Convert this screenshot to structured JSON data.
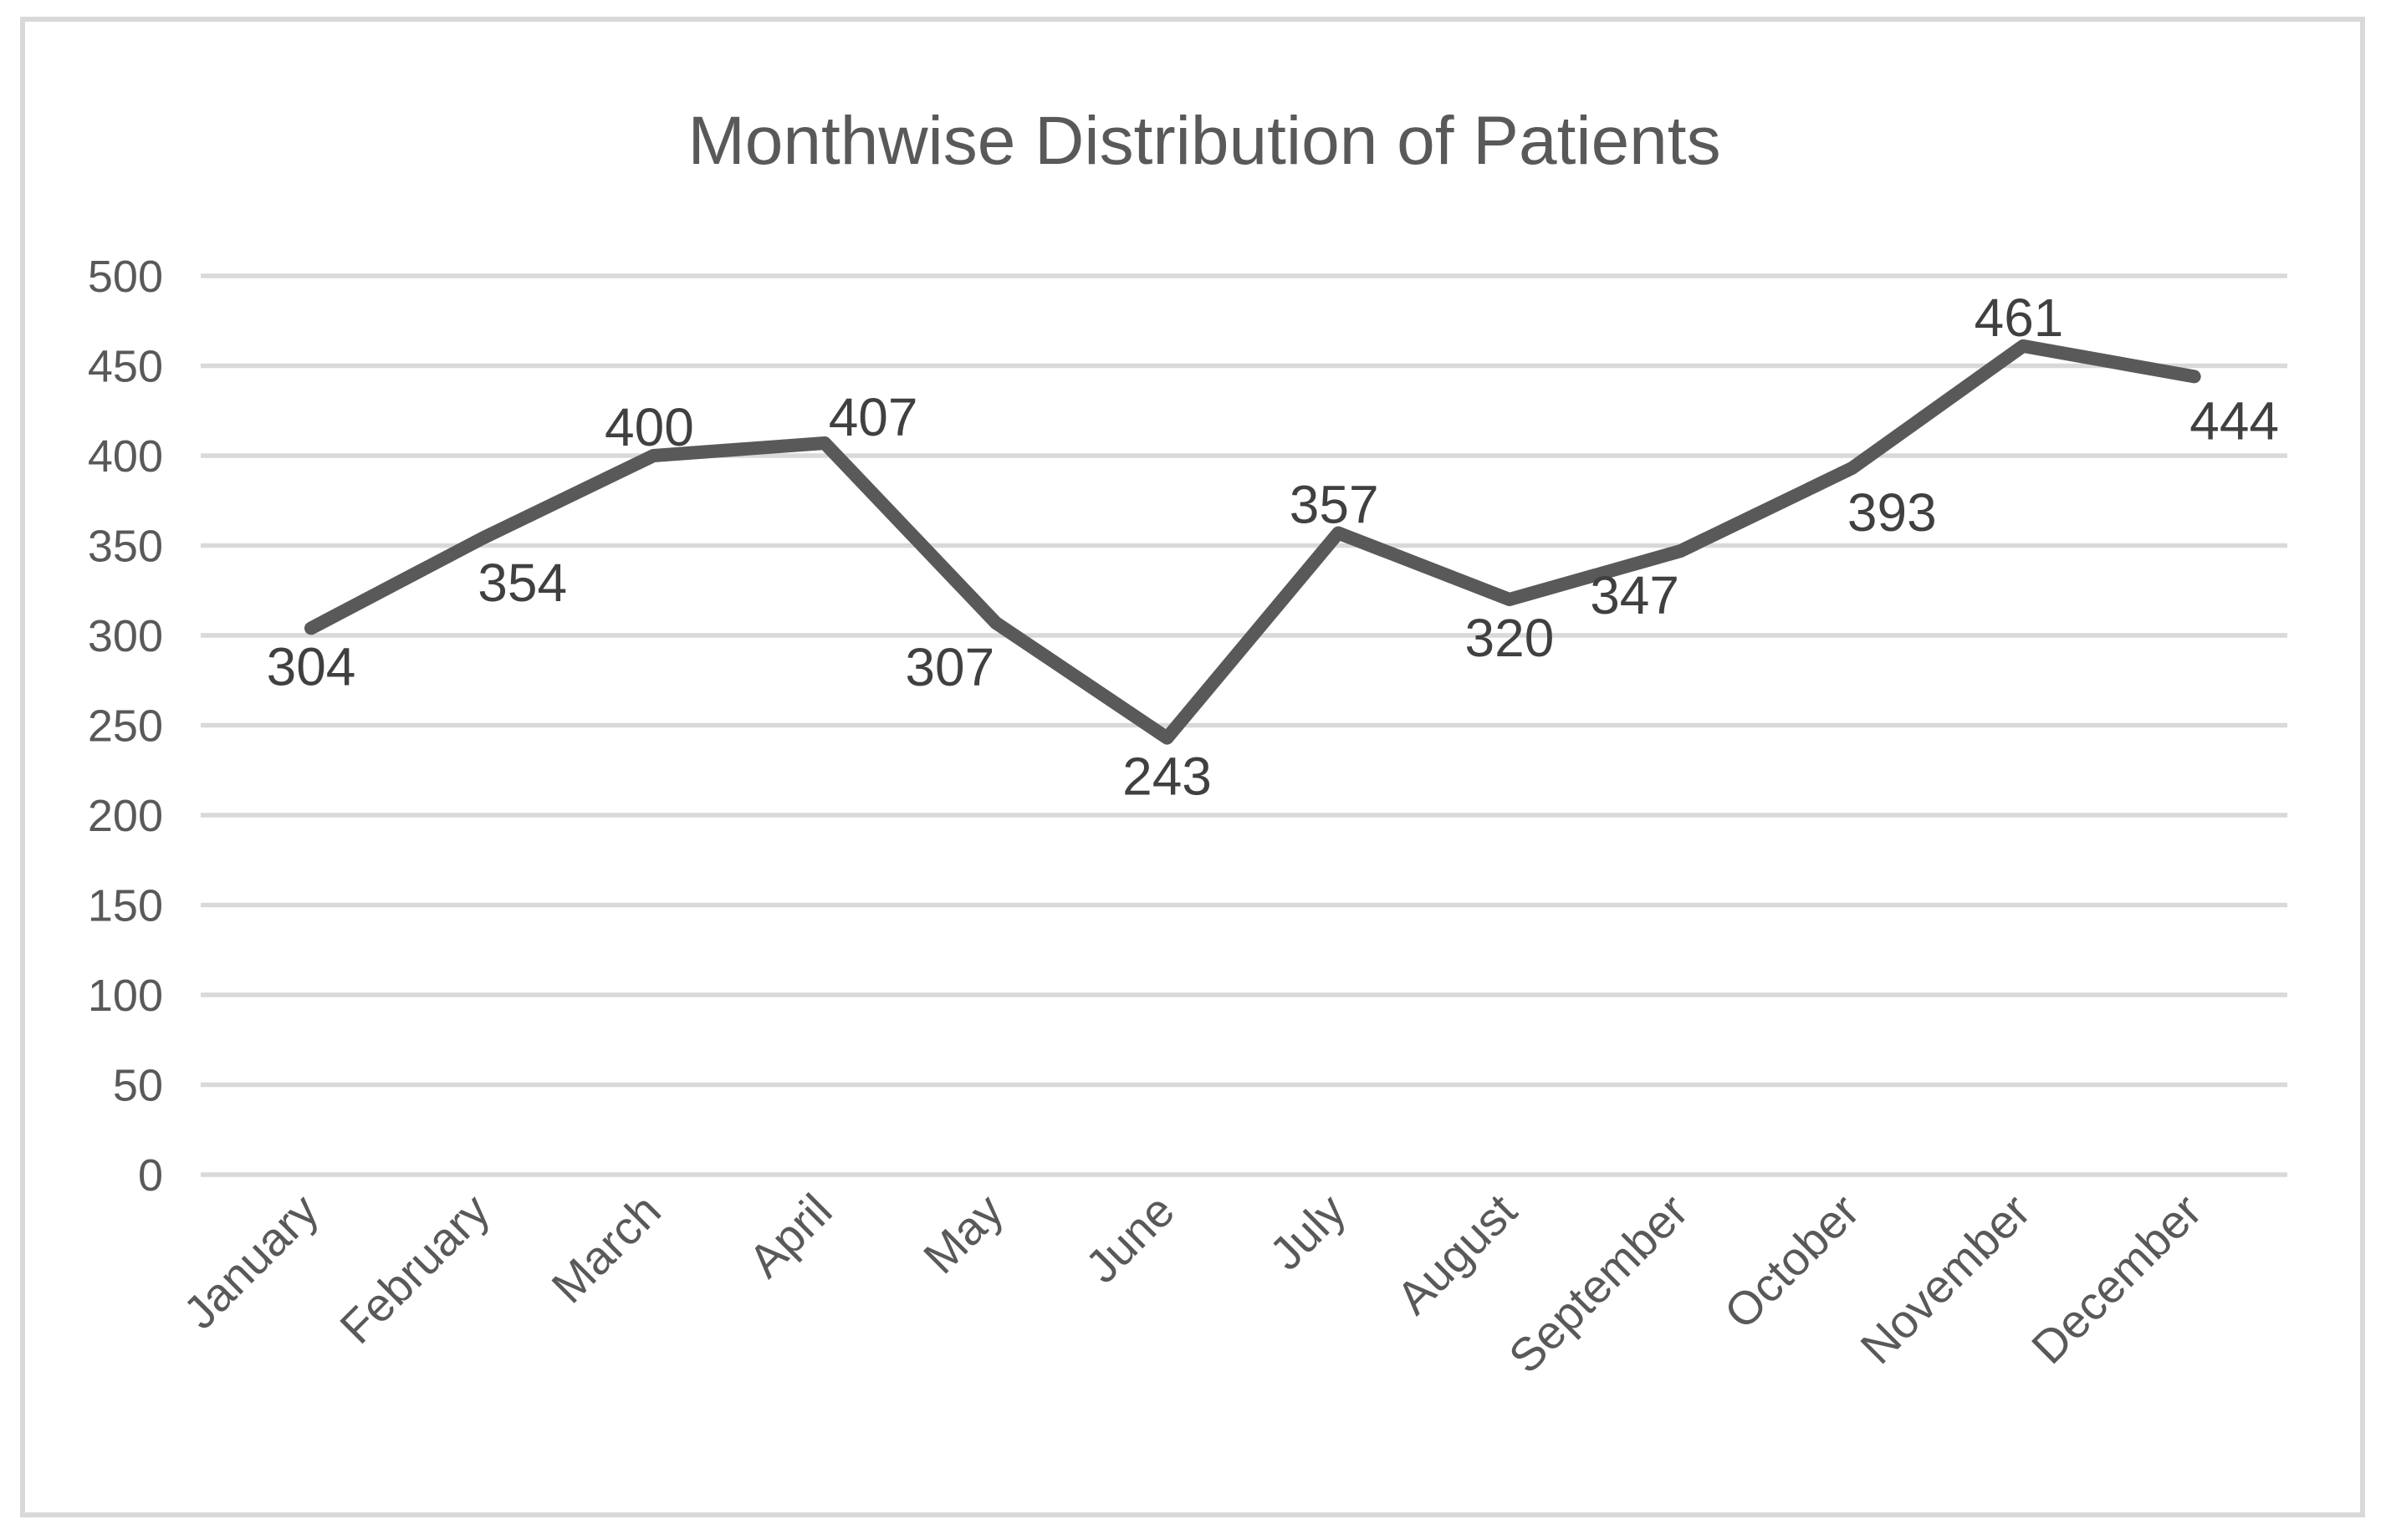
{
  "chart_data": {
    "type": "line",
    "title": "Monthwise Distribution of Patients",
    "categories": [
      "January",
      "February",
      "March",
      "April",
      "May",
      "June",
      "July",
      "August",
      "September",
      "October",
      "November",
      "December"
    ],
    "values": [
      304,
      354,
      400,
      407,
      307,
      243,
      357,
      320,
      347,
      393,
      461,
      444
    ],
    "data_labels": [
      "304",
      "354",
      "400",
      "407",
      "307",
      "243",
      "357",
      "320",
      "347",
      "393",
      "461",
      "444"
    ],
    "ytick_labels": [
      "0",
      "50",
      "100",
      "150",
      "200",
      "250",
      "300",
      "350",
      "400",
      "450",
      "500"
    ],
    "ylim": [
      0,
      500
    ],
    "ytick_step": 50,
    "xlabel": "",
    "ylabel": "",
    "grid": "horizontal",
    "legend": "none",
    "x_label_rotation_deg": 45,
    "data_label_placement": [
      "below",
      "below-right",
      "above",
      "above-right",
      "below-left",
      "below",
      "above",
      "below",
      "below-left",
      "below-right",
      "above",
      "below-right"
    ],
    "colors": {
      "line": "#595959",
      "gridline": "#d9d9d9",
      "frame_border": "#d9d9d9",
      "title_text": "#595959",
      "tick_text": "#595959",
      "data_label_text": "#404040",
      "background": "#ffffff"
    }
  }
}
